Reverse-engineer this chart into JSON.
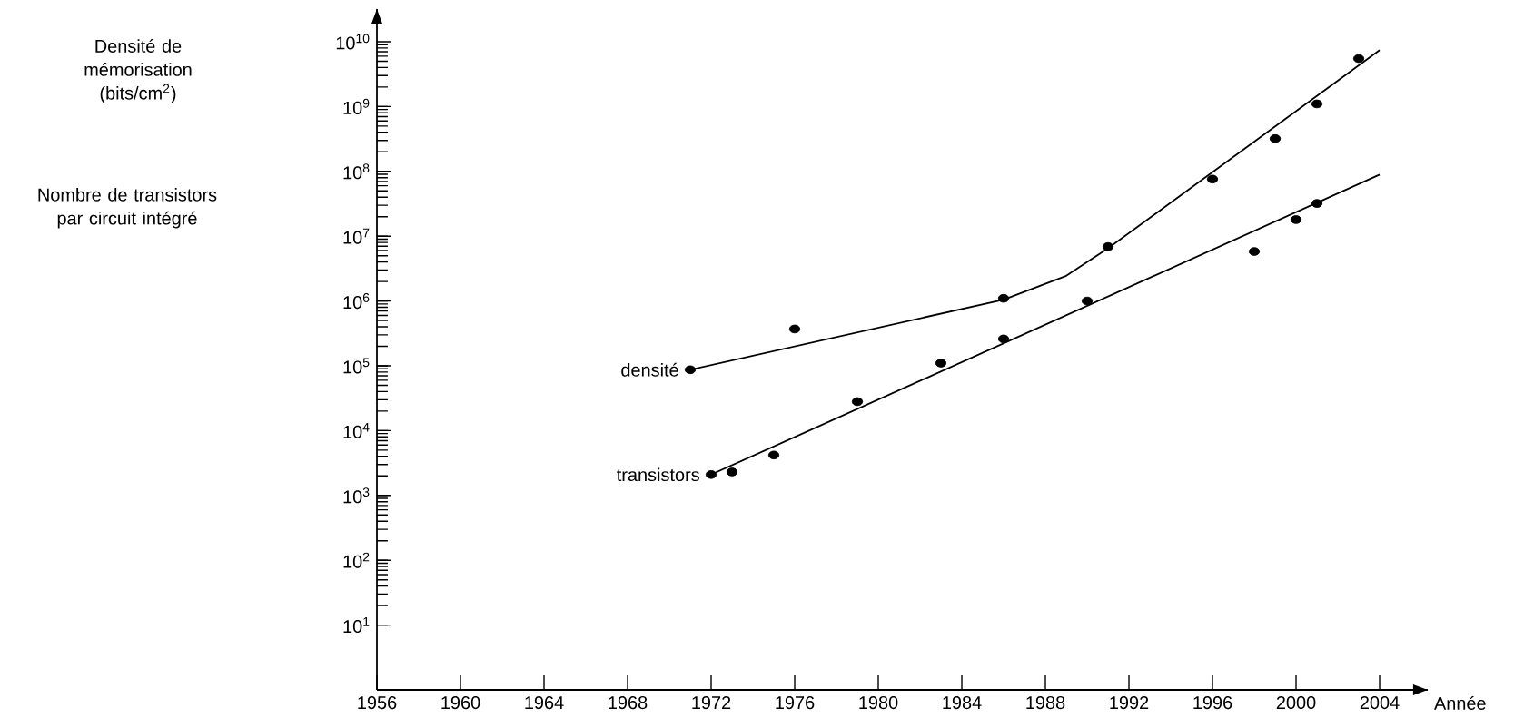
{
  "chart_data": {
    "type": "scatter",
    "xlabel": "Année",
    "annotations": [
      "Densité de mémorisation (bits/cm$^{2}$)",
      "Nombre de transistors par circuit intégré"
    ],
    "log": "y",
    "xlim": [
      1956,
      2006.3
    ],
    "ylim": [
      1,
      32000000000
    ],
    "xticks": [
      1956,
      1960,
      1964,
      1968,
      1972,
      1976,
      1980,
      1984,
      1988,
      1992,
      1996,
      2000,
      2004
    ],
    "yticks": [
      {
        "value": 10,
        "label": "10$^{1}$"
      },
      {
        "value": 100,
        "label": "10$^{2}$"
      },
      {
        "value": 1000,
        "label": "10$^{3}$"
      },
      {
        "value": 10000,
        "label": "10$^{4}$"
      },
      {
        "value": 100000,
        "label": "10$^{5}$"
      },
      {
        "value": 1000000,
        "label": "10$^{6}$"
      },
      {
        "value": 10000000,
        "label": "10$^{7}$"
      },
      {
        "value": 100000000,
        "label": "10$^{8}$"
      },
      {
        "value": 1000000000,
        "label": "10$^{9}$"
      },
      {
        "value": 10000000000,
        "label": "10$^{10}$"
      }
    ],
    "series": [
      {
        "name": "densité",
        "marker": "circle",
        "color": "#000000",
        "x": [
          1971,
          1976,
          1986,
          1991,
          1996,
          1999,
          2001,
          2003
        ],
        "values": [
          87000,
          370000,
          1100000,
          6900000,
          76000000,
          320000000,
          1100000000,
          5500000000
        ]
      },
      {
        "name": "transistors",
        "marker": "circle",
        "color": "#000000",
        "x": [
          1972,
          1973,
          1975,
          1979,
          1983,
          1986,
          1990,
          1998,
          2000,
          2001
        ],
        "values": [
          2100,
          2300,
          4200,
          28000,
          110000,
          260000,
          1000000,
          5800000,
          18000000,
          32000000
        ]
      },
      {
        "type": "line",
        "marker": "none",
        "color": "#000000",
        "x": [
          1971,
          1986,
          1989,
          1991,
          2004
        ],
        "values": [
          87000,
          1050000,
          2450000,
          6500000,
          7400000000
        ]
      },
      {
        "type": "line",
        "marker": "none",
        "color": "#000000",
        "x": [
          1972,
          2004
        ],
        "values": [
          2100,
          89000000
        ]
      }
    ]
  }
}
